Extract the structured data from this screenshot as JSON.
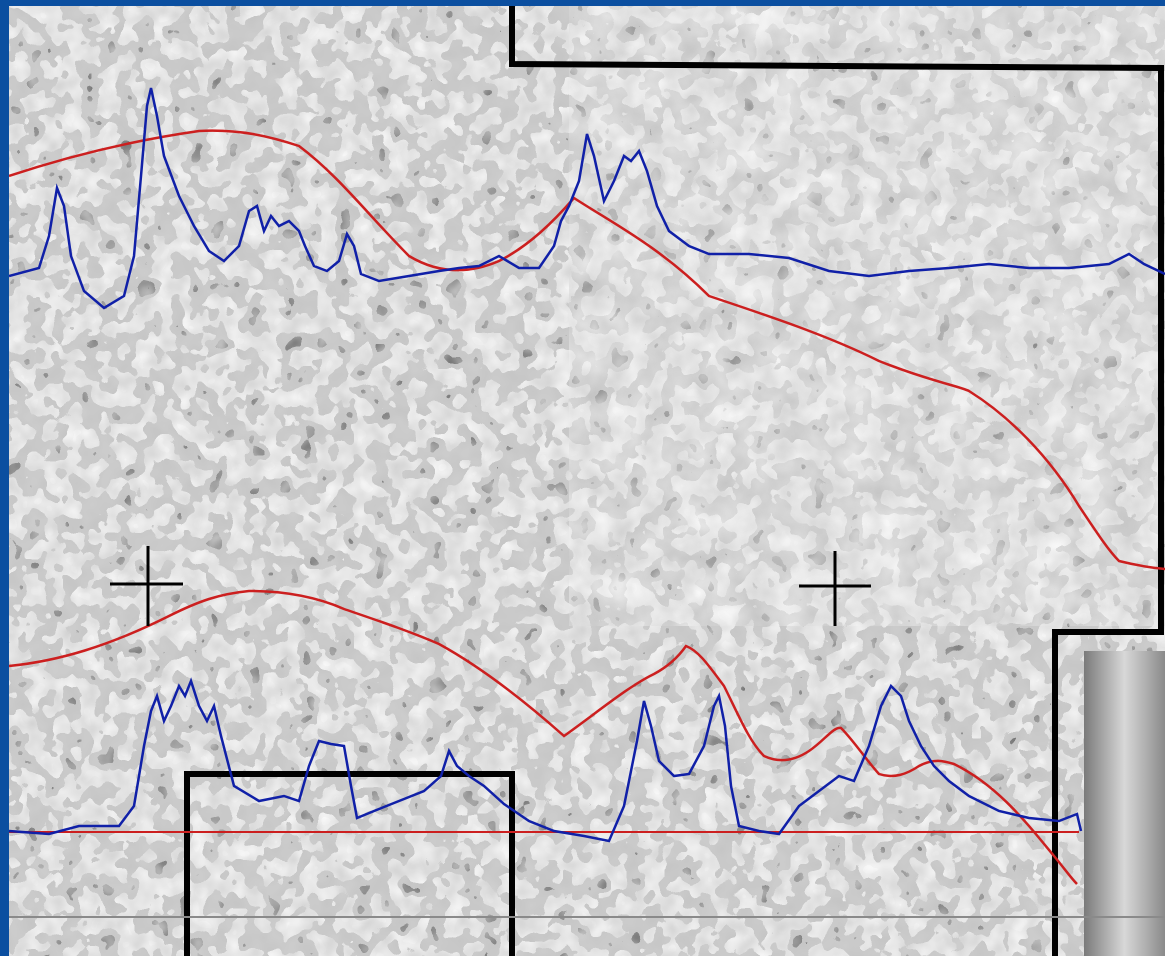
{
  "colors": {
    "frame": "#0b4fa0",
    "red_trace": "#cc1f1f",
    "blue_trace": "#1020a8",
    "outline": "#000000",
    "baseline_gray": "#8a8a8a"
  },
  "icons": [
    "crosshair-icon",
    "crosshair-icon"
  ]
}
